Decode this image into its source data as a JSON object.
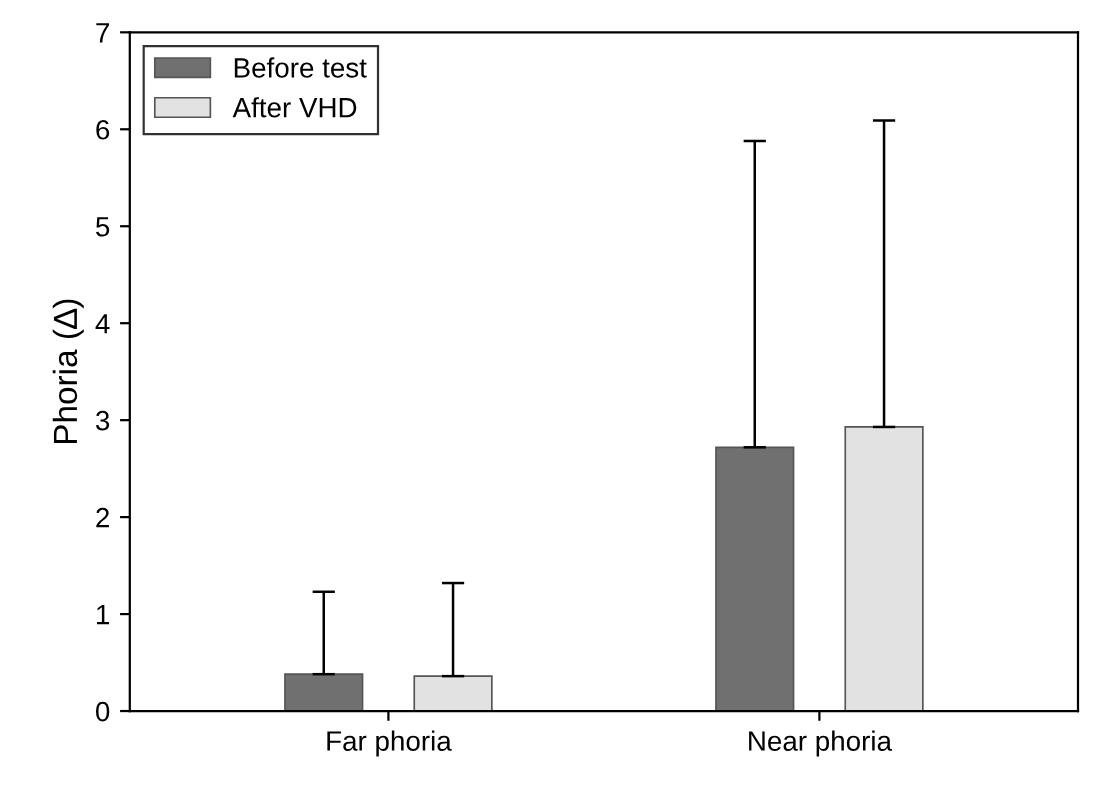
{
  "chart_data": {
    "type": "bar",
    "ylabel": "Phoria (∆)",
    "categories": [
      "Far phoria",
      "Near phoria"
    ],
    "series": [
      {
        "name": "Before test",
        "color": "#707070",
        "values": [
          0.38,
          2.72
        ],
        "errors": [
          [
            0.38,
            1.23
          ],
          [
            2.72,
            5.88
          ]
        ]
      },
      {
        "name": "After VHD",
        "color": "#e2e2e2",
        "values": [
          0.36,
          2.93
        ],
        "errors": [
          [
            0.36,
            1.32
          ],
          [
            2.93,
            6.09
          ]
        ]
      }
    ],
    "ylim": [
      0,
      7
    ],
    "yticks": [
      0,
      1,
      2,
      3,
      4,
      5,
      6,
      7
    ],
    "grid": false,
    "legend": "top left"
  }
}
